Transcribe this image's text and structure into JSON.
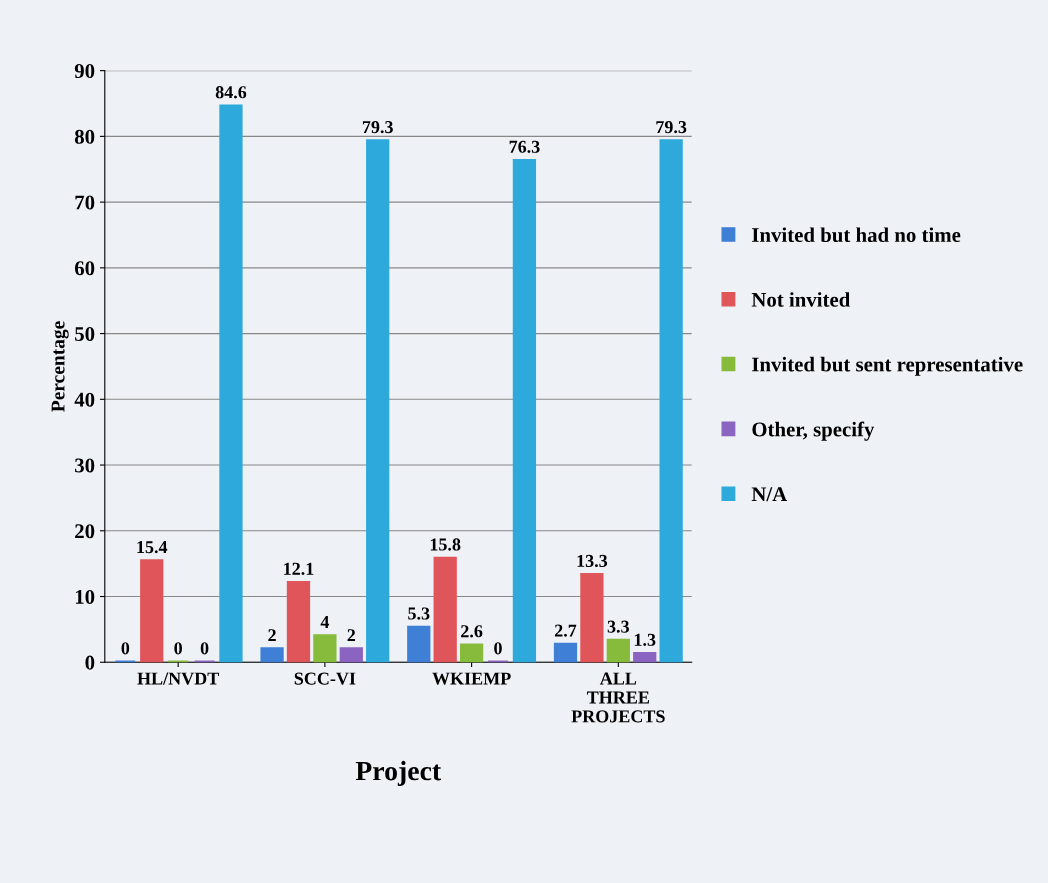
{
  "chart_data": {
    "type": "bar",
    "xlabel": "Project",
    "ylabel": "Percentage",
    "categories": [
      "HL/NVDT",
      "SCC-VI",
      "WKIEMP",
      "ALL\nTHREE\nPROJECTS"
    ],
    "series": [
      {
        "name": "Invited but had no time",
        "color": "#3f7fd6",
        "values": [
          0,
          2,
          5.3,
          2.7
        ]
      },
      {
        "name": "Not invited",
        "color": "#e0555a",
        "values": [
          15.4,
          12.1,
          15.8,
          13.3
        ]
      },
      {
        "name": "Invited but sent representative",
        "color": "#86bb3c",
        "values": [
          0,
          4,
          2.6,
          3.3
        ]
      },
      {
        "name": "Other, specify",
        "color": "#8a64c0",
        "values": [
          0,
          2,
          0,
          1.3
        ]
      },
      {
        "name": "N/A",
        "color": "#2ea9dc",
        "values": [
          84.6,
          79.3,
          76.3,
          79.3
        ]
      }
    ],
    "ylim": [
      0,
      90
    ],
    "yticks": [
      0,
      10,
      20,
      30,
      40,
      50,
      60,
      70,
      80,
      90
    ],
    "grid": "y",
    "legend": "right",
    "data_labels": true
  }
}
